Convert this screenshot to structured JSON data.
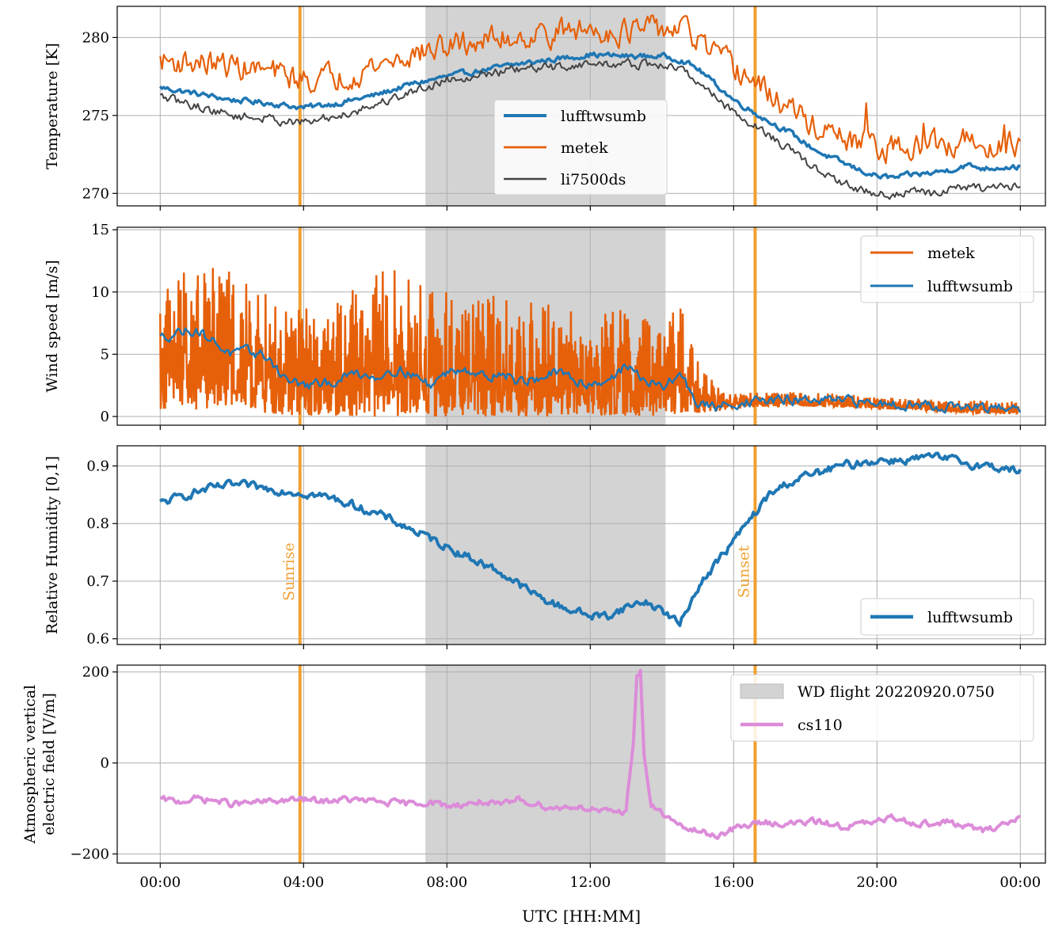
{
  "chart_data": [
    {
      "type": "line",
      "ylabel": "Temperature [K]",
      "ylim": [
        269.2,
        282.0
      ],
      "yticks": [
        270,
        275,
        280
      ],
      "legend_position": "center",
      "series": [
        {
          "name": "lufftwsumb",
          "color": "#1f77b4",
          "x": [
            0,
            1,
            2,
            3,
            4,
            5,
            6,
            7,
            8,
            9,
            10,
            11,
            12,
            13,
            14,
            14.5,
            15,
            15.5,
            16,
            16.5,
            17,
            17.5,
            18,
            18.5,
            19,
            19.5,
            20,
            20.5,
            21,
            21.5,
            22,
            22.5,
            23,
            23.5,
            24
          ],
          "y": [
            276.8,
            276.4,
            276.0,
            275.8,
            275.5,
            275.8,
            276.3,
            277.0,
            277.5,
            277.9,
            278.3,
            278.6,
            278.9,
            278.8,
            278.8,
            278.6,
            278.0,
            277.0,
            276.0,
            275.3,
            274.6,
            274.0,
            273.2,
            272.5,
            272.0,
            271.5,
            271.1,
            271.0,
            271.2,
            271.3,
            271.5,
            271.8,
            271.6,
            271.7,
            271.7
          ]
        },
        {
          "name": "metek",
          "color": "#e6600a",
          "x": [
            0,
            1,
            2,
            3,
            4,
            5,
            6,
            7,
            8,
            9,
            10,
            11,
            12,
            13,
            14,
            14.5,
            15,
            15.5,
            16,
            16.5,
            17,
            17.5,
            18,
            18.5,
            19,
            19.5,
            20,
            20.5,
            21,
            21.5,
            22,
            22.5,
            23,
            23.5,
            24
          ],
          "y": [
            278.5,
            278.4,
            278.2,
            277.8,
            277.3,
            277.5,
            278.2,
            278.9,
            279.4,
            279.8,
            280.1,
            280.3,
            280.5,
            280.4,
            280.5,
            280.6,
            279.8,
            278.8,
            278.0,
            277.3,
            276.3,
            275.6,
            274.7,
            273.9,
            273.5,
            273.1,
            273.0,
            272.9,
            273.0,
            273.0,
            273.2,
            273.4,
            273.3,
            273.2,
            273.1
          ]
        },
        {
          "name": "li7500ds",
          "color": "#444444",
          "x": [
            0,
            1,
            2,
            3,
            4,
            5,
            6,
            7,
            8,
            9,
            10,
            11,
            12,
            13,
            14,
            14.5,
            15,
            15.5,
            16,
            16.5,
            17,
            17.5,
            18,
            18.5,
            19,
            19.5,
            20,
            20.5,
            21,
            21.5,
            22,
            22.5,
            23,
            23.5,
            24
          ],
          "y": [
            276.2,
            275.6,
            275.0,
            274.8,
            274.5,
            275.0,
            275.7,
            276.5,
            277.3,
            277.7,
            277.9,
            278.1,
            278.3,
            278.3,
            278.2,
            278.0,
            277.2,
            276.2,
            275.2,
            274.5,
            273.7,
            272.9,
            272.0,
            271.3,
            270.7,
            270.2,
            270.0,
            269.9,
            270.1,
            270.0,
            270.2,
            270.4,
            270.3,
            270.3,
            270.6
          ]
        }
      ]
    },
    {
      "type": "line",
      "ylabel": "Wind speed [m/s]",
      "ylim": [
        -0.7,
        15.2
      ],
      "yticks": [
        0,
        5,
        10,
        15
      ],
      "legend_position": "upper right",
      "series": [
        {
          "name": "metek",
          "color": "#e6600a",
          "envelope": "band",
          "x": [
            0,
            0.5,
            1,
            1.5,
            2,
            2.5,
            3,
            3.5,
            4,
            4.5,
            5,
            5.5,
            6,
            6.5,
            7,
            7.5,
            8,
            8.5,
            9,
            9.5,
            10,
            10.5,
            11,
            11.5,
            12,
            12.5,
            13,
            13.5,
            14,
            14.5,
            15,
            15.5,
            16,
            17,
            18,
            19,
            20,
            21,
            22,
            23,
            24
          ],
          "ylow": [
            0.6,
            0.4,
            0.5,
            0.3,
            0.4,
            0.3,
            0.2,
            0.1,
            0.1,
            0.0,
            0.1,
            0.0,
            0.0,
            0.0,
            0.0,
            0.0,
            0.0,
            0.0,
            0.0,
            0.0,
            0.0,
            0.0,
            0.0,
            0.0,
            0.0,
            0.0,
            0.0,
            0.0,
            0.0,
            0.3,
            0.3,
            0.4,
            0.6,
            0.8,
            0.8,
            0.7,
            0.6,
            0.5,
            0.3,
            0.2,
            0.2
          ],
          "yhigh": [
            10.5,
            12.0,
            13.5,
            12.5,
            11.5,
            10.5,
            9.8,
            8.5,
            9.0,
            8.2,
            9.5,
            10.5,
            11.5,
            12.0,
            11.0,
            10.5,
            10.5,
            11.0,
            9.5,
            10.0,
            9.0,
            9.5,
            9.0,
            8.5,
            8.0,
            8.5,
            9.5,
            8.0,
            7.5,
            9.0,
            5.5,
            2.5,
            2.0,
            1.9,
            2.0,
            1.8,
            1.6,
            1.5,
            1.3,
            1.3,
            1.2
          ]
        },
        {
          "name": "lufftwsumb",
          "color": "#1f77b4",
          "x": [
            0,
            0.5,
            1,
            1.5,
            2,
            2.5,
            3,
            3.5,
            4,
            4.5,
            5,
            5.5,
            6,
            6.5,
            7,
            7.5,
            8,
            8.5,
            9,
            9.5,
            10,
            10.5,
            11,
            11.5,
            12,
            12.5,
            13,
            13.5,
            14,
            14.5,
            15,
            15.5,
            16,
            17,
            18,
            19,
            20,
            21,
            22,
            23,
            24
          ],
          "y": [
            6.3,
            6.8,
            7.0,
            6.0,
            5.0,
            5.2,
            4.8,
            3.0,
            2.5,
            2.5,
            3.0,
            3.5,
            3.2,
            3.8,
            3.5,
            2.5,
            3.5,
            4.0,
            3.2,
            3.5,
            2.8,
            3.0,
            3.5,
            3.0,
            2.6,
            3.0,
            4.0,
            3.0,
            2.2,
            3.5,
            1.0,
            0.7,
            1.1,
            1.3,
            1.3,
            1.2,
            1.1,
            1.0,
            0.8,
            0.6,
            0.6
          ]
        }
      ]
    },
    {
      "type": "line",
      "ylabel": "Relative Humidity [0,1]",
      "ylim": [
        0.59,
        0.935
      ],
      "yticks": [
        0.6,
        0.7,
        0.8,
        0.9
      ],
      "legend_position": "lower right",
      "annotations": [
        "Sunrise",
        "Sunset"
      ],
      "series": [
        {
          "name": "lufftwsumb",
          "color": "#1f77b4",
          "x": [
            0,
            0.5,
            1,
            1.5,
            2,
            2.5,
            3,
            3.5,
            4,
            4.5,
            5,
            5.5,
            6,
            6.5,
            7,
            7.5,
            8,
            8.5,
            9,
            9.5,
            10,
            10.5,
            11,
            11.5,
            12,
            12.5,
            13,
            13.5,
            14,
            14.5,
            15,
            15.5,
            16,
            16.5,
            17,
            17.5,
            18,
            18.5,
            19,
            19.5,
            20,
            20.5,
            21,
            21.5,
            22,
            22.5,
            23,
            23.5,
            24
          ],
          "y": [
            0.835,
            0.845,
            0.855,
            0.862,
            0.867,
            0.865,
            0.86,
            0.857,
            0.853,
            0.848,
            0.84,
            0.83,
            0.818,
            0.805,
            0.79,
            0.775,
            0.76,
            0.745,
            0.73,
            0.715,
            0.695,
            0.675,
            0.66,
            0.65,
            0.64,
            0.64,
            0.655,
            0.665,
            0.65,
            0.625,
            0.69,
            0.73,
            0.77,
            0.81,
            0.85,
            0.87,
            0.882,
            0.89,
            0.9,
            0.905,
            0.91,
            0.91,
            0.912,
            0.915,
            0.912,
            0.905,
            0.9,
            0.897,
            0.89
          ]
        }
      ]
    },
    {
      "type": "line",
      "ylabel": "Atmospheric vertical electric field [V/m]",
      "ylabel_lines": [
        "Atmospheric vertical",
        "electric field [V/m]"
      ],
      "ylim": [
        -220,
        215
      ],
      "yticks": [
        -200,
        0,
        200
      ],
      "legend_position": "upper right",
      "series": [
        {
          "name": "cs110",
          "color": "#dc8cd9",
          "x": [
            0,
            0.5,
            1,
            1.5,
            2,
            2.5,
            3,
            3.5,
            4,
            4.5,
            5,
            5.5,
            6,
            6.5,
            7,
            7.5,
            8,
            8.5,
            9,
            9.5,
            10,
            10.5,
            11,
            11.5,
            12,
            12.5,
            13,
            13.2,
            13.3,
            13.4,
            13.5,
            13.7,
            14,
            14.5,
            15,
            15.5,
            16,
            16.5,
            17,
            17.5,
            18,
            18.5,
            19,
            19.5,
            20,
            20.5,
            21,
            21.5,
            22,
            22.5,
            23,
            23.5,
            24
          ],
          "y": [
            -80,
            -85,
            -78,
            -82,
            -90,
            -88,
            -85,
            -82,
            -80,
            -85,
            -80,
            -82,
            -85,
            -88,
            -90,
            -85,
            -95,
            -90,
            -85,
            -95,
            -80,
            -90,
            -100,
            -95,
            -100,
            -110,
            -105,
            50,
            190,
            200,
            20,
            -95,
            -110,
            -140,
            -150,
            -160,
            -145,
            -135,
            -130,
            -135,
            -130,
            -130,
            -140,
            -135,
            -130,
            -120,
            -130,
            -135,
            -130,
            -140,
            -150,
            -135,
            -120
          ]
        }
      ]
    }
  ],
  "shaded_region": {
    "label": "WD flight 20220920.0750",
    "color": "#d3d3d3",
    "x_start": 7.4,
    "x_end": 14.1
  },
  "vertical_lines": [
    {
      "label": "Sunrise",
      "x": 3.9,
      "color": "#f0a030"
    },
    {
      "label": "Sunset",
      "x": 16.6,
      "color": "#f0a030"
    }
  ],
  "x_axis": {
    "label": "UTC [HH:MM]",
    "range_hours": [
      -1.2,
      24.7
    ],
    "ticks": [
      0,
      4,
      8,
      12,
      16,
      20,
      24
    ],
    "tick_labels": [
      "00:00",
      "04:00",
      "08:00",
      "12:00",
      "16:00",
      "20:00",
      "00:00"
    ]
  },
  "grid": true
}
